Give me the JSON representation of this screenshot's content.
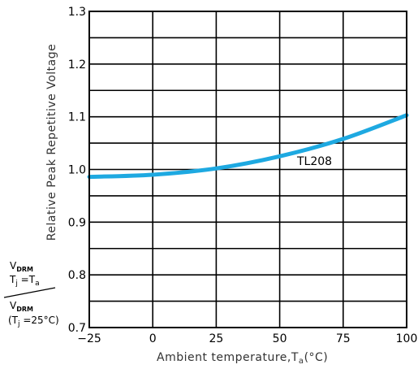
{
  "chart_data": {
    "type": "line",
    "xlabel": "Ambient  temperature,T",
    "xlabel_sub": "a",
    "xlabel_unit": "(°C)",
    "ylabel": "Relative  Peak  Repetitive  Voltage",
    "xlim": [
      -25,
      100
    ],
    "ylim": [
      0.7,
      1.3
    ],
    "x_ticks": [
      "−25",
      "0",
      "25",
      "50",
      "75",
      "100"
    ],
    "y_ticks": [
      "0.7",
      "0.8",
      "0.9",
      "1.0",
      "1.1",
      "1.2",
      "1.3"
    ],
    "grid": true,
    "minor_y_grid": true,
    "series": [
      {
        "name": "TL208",
        "color": "#1ea9e1",
        "x": [
          -25,
          0,
          25,
          50,
          75,
          100
        ],
        "y": [
          0.986,
          0.99,
          1.002,
          1.025,
          1.058,
          1.103
        ]
      }
    ],
    "side_formula": {
      "num_main": "V",
      "num_sub": "DRM",
      "num_cond": "T",
      "num_cond_sub": "j",
      "num_cond_eq": " =T",
      "num_cond_sub2": "a",
      "den_main": "V",
      "den_sub": "DRM",
      "den_cond_open": "(T",
      "den_cond_sub": "j",
      "den_cond_rest": " =25°C)"
    }
  }
}
